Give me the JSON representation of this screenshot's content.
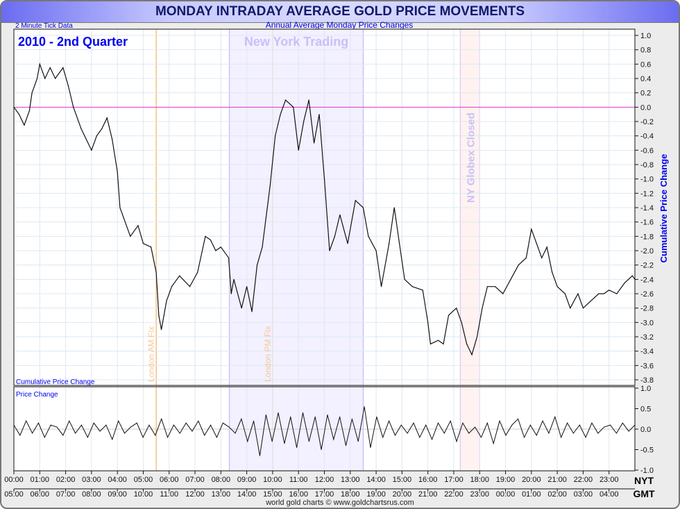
{
  "title": "MONDAY INTRADAY AVERAGE GOLD PRICE MOVEMENTS",
  "subtitle": "Annual Average Monday Price Changes",
  "tick_note": "2 Minute Tick Data",
  "period_label": "2010 - 2nd Quarter",
  "footer": "world gold charts © www.goldchartsrus.com",
  "colors": {
    "line": "#111111",
    "accent": "#0000ee",
    "zero_line": "#dd33cc",
    "ny_shade": "#f3f0ff",
    "globex_shade": "#fff2f0",
    "fix_line": "#f5a040"
  },
  "chart_data": [
    {
      "type": "line",
      "title": "Cumulative Price Change",
      "ylabel": "Cumulative Price Change",
      "ylim": [
        -3.8,
        1.0
      ],
      "yticks": [
        "1.0",
        "0.8",
        "0.6",
        "0.4",
        "0.2",
        "0.0",
        "-0.2",
        "-0.4",
        "-0.6",
        "-0.8",
        "-1.0",
        "-1.2",
        "-1.4",
        "-1.6",
        "-1.8",
        "-2.0",
        "-2.2",
        "-2.4",
        "-2.6",
        "-2.8",
        "-3.0",
        "-3.2",
        "-3.4",
        "-3.6",
        "-3.8"
      ],
      "annotations": {
        "ny_trading": "New York Trading",
        "london_am": "London AM Fix",
        "london_pm": "London PM Fix",
        "globex": "NY Globex Closed"
      },
      "regions_nyt_hours": {
        "ny_trading": [
          8.33,
          13.5
        ],
        "globex_closed": [
          17.25,
          18.0
        ],
        "london_am_fix": 5.5,
        "london_pm_fix": 10.0
      },
      "x": [
        0,
        0.2,
        0.4,
        0.6,
        0.7,
        0.9,
        1.0,
        1.2,
        1.4,
        1.6,
        1.9,
        2.1,
        2.3,
        2.6,
        3.0,
        3.2,
        3.4,
        3.6,
        3.8,
        4.0,
        4.1,
        4.3,
        4.5,
        4.8,
        5.0,
        5.3,
        5.5,
        5.6,
        5.7,
        5.9,
        6.1,
        6.4,
        6.8,
        7.1,
        7.4,
        7.6,
        7.8,
        8.0,
        8.3,
        8.4,
        8.5,
        8.8,
        9.0,
        9.2,
        9.4,
        9.6,
        9.9,
        10.1,
        10.3,
        10.5,
        10.8,
        11.0,
        11.2,
        11.4,
        11.6,
        11.8,
        12.0,
        12.2,
        12.4,
        12.6,
        12.9,
        13.2,
        13.5,
        13.7,
        14.0,
        14.2,
        14.5,
        14.7,
        14.9,
        15.1,
        15.4,
        15.8,
        16.0,
        16.1,
        16.4,
        16.6,
        16.8,
        17.1,
        17.3,
        17.5,
        17.7,
        17.9,
        18.1,
        18.3,
        18.6,
        18.9,
        19.2,
        19.5,
        19.8,
        20.0,
        20.2,
        20.4,
        20.6,
        20.8,
        21.0,
        21.3,
        21.5,
        21.8,
        22.0,
        22.3,
        22.6,
        22.8,
        23.0,
        23.3,
        23.6,
        23.9,
        24.0
      ],
      "values": [
        0,
        -0.1,
        -0.25,
        -0.05,
        0.2,
        0.4,
        0.6,
        0.4,
        0.55,
        0.4,
        0.55,
        0.3,
        0.0,
        -0.3,
        -0.6,
        -0.4,
        -0.3,
        -0.15,
        -0.45,
        -0.9,
        -1.4,
        -1.6,
        -1.8,
        -1.65,
        -1.9,
        -1.95,
        -2.3,
        -2.9,
        -3.1,
        -2.7,
        -2.5,
        -2.35,
        -2.5,
        -2.3,
        -1.8,
        -1.85,
        -2.0,
        -1.95,
        -2.1,
        -2.6,
        -2.4,
        -2.8,
        -2.5,
        -2.85,
        -2.2,
        -1.95,
        -1.1,
        -0.4,
        -0.1,
        0.1,
        0.0,
        -0.6,
        -0.2,
        0.1,
        -0.5,
        -0.1,
        -1.0,
        -2.0,
        -1.8,
        -1.5,
        -1.9,
        -1.3,
        -1.4,
        -1.8,
        -2.0,
        -2.5,
        -1.9,
        -1.4,
        -1.9,
        -2.4,
        -2.5,
        -2.55,
        -3.0,
        -3.3,
        -3.25,
        -3.3,
        -2.9,
        -2.8,
        -3.0,
        -3.3,
        -3.45,
        -3.2,
        -2.8,
        -2.5,
        -2.5,
        -2.6,
        -2.4,
        -2.2,
        -2.1,
        -1.7,
        -1.9,
        -2.1,
        -1.95,
        -2.3,
        -2.5,
        -2.6,
        -2.8,
        -2.6,
        -2.8,
        -2.7,
        -2.6,
        -2.6,
        -2.55,
        -2.6,
        -2.45,
        -2.35,
        -2.4
      ]
    },
    {
      "type": "line",
      "title": "Price Change",
      "ylim": [
        -1.0,
        1.0
      ],
      "yticks": [
        "1.0",
        "0.5",
        "0.0",
        "-0.5",
        "-1.0"
      ],
      "values": [
        0.1,
        -0.15,
        0.2,
        -0.1,
        0.15,
        -0.2,
        0.1,
        0.05,
        -0.15,
        0.2,
        -0.1,
        0.1,
        -0.2,
        0.15,
        -0.05,
        0.1,
        -0.25,
        0.2,
        -0.1,
        0.05,
        0.15,
        -0.2,
        0.1,
        -0.15,
        0.25,
        -0.2,
        0.1,
        -0.1,
        0.15,
        -0.05,
        0.2,
        -0.15,
        0.1,
        -0.2,
        0.15,
        0.05,
        -0.1,
        0.25,
        -0.3,
        0.2,
        -0.65,
        0.35,
        -0.3,
        0.4,
        -0.35,
        0.3,
        -0.45,
        0.4,
        -0.3,
        0.3,
        -0.5,
        0.35,
        -0.25,
        0.3,
        -0.4,
        0.25,
        -0.3,
        0.55,
        -0.45,
        0.3,
        -0.2,
        0.2,
        -0.15,
        0.1,
        -0.1,
        0.15,
        -0.2,
        0.1,
        -0.25,
        0.15,
        -0.1,
        0.2,
        -0.3,
        0.15,
        -0.1,
        0.05,
        -0.2,
        0.15,
        -0.35,
        0.2,
        -0.15,
        0.1,
        0.25,
        -0.2,
        0.1,
        -0.15,
        0.2,
        -0.1,
        0.3,
        -0.2,
        0.15,
        -0.1,
        0.1,
        -0.2,
        0.15,
        -0.1,
        0.05,
        0.1,
        -0.1,
        0.15,
        -0.05,
        0.1
      ]
    }
  ],
  "x_axis": {
    "nyt_label": "NYT",
    "gmt_label": "GMT",
    "nyt_ticks": [
      "00:00",
      "01:00",
      "02:00",
      "03:00",
      "04:00",
      "05:00",
      "06:00",
      "07:00",
      "08:00",
      "09:00",
      "10:00",
      "11:00",
      "12:00",
      "13:00",
      "14:00",
      "15:00",
      "16:00",
      "17:00",
      "18:00",
      "19:00",
      "20:00",
      "21:00",
      "22:00",
      "23:00"
    ],
    "gmt_ticks": [
      "05:00",
      "06:00",
      "07:00",
      "08:00",
      "09:00",
      "10:00",
      "11:00",
      "12:00",
      "13:00",
      "14:00",
      "15:00",
      "16:00",
      "17:00",
      "18:00",
      "19:00",
      "20:00",
      "21:00",
      "22:00",
      "23:00",
      "00:00",
      "01:00",
      "02:00",
      "03:00",
      "04:00"
    ]
  }
}
